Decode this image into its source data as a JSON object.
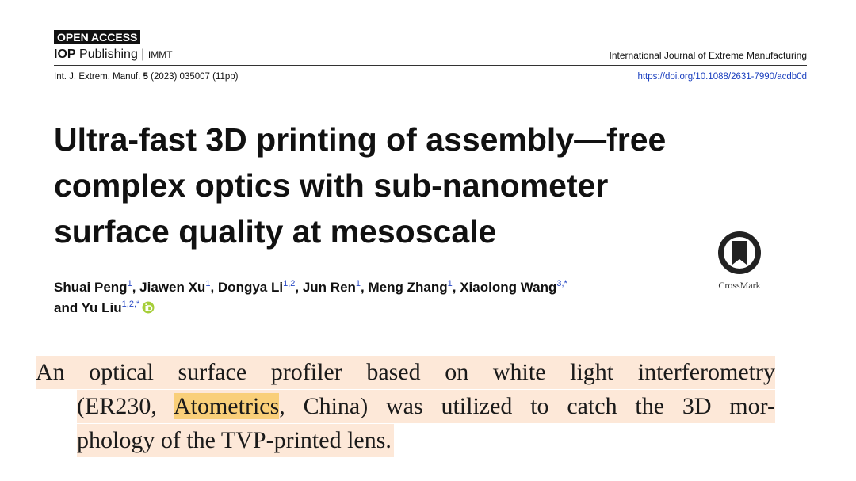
{
  "header": {
    "badge": "OPEN ACCESS",
    "publisher": "IOP",
    "publisher_rest": "Publishing",
    "separator": "|",
    "society": "IMMT",
    "journal": "International Journal of Extreme Manufacturing",
    "citation_prefix": "Int. J. Extrem. Manuf.",
    "volume": "5",
    "citation_suffix": "(2023) 035007 (11pp)",
    "doi": "https://doi.org/10.1088/2631-7990/acdb0d"
  },
  "title": {
    "lines": [
      "Ultra-fast 3D printing of assembly—free",
      "complex optics with sub-nanometer",
      "surface quality at mesoscale"
    ]
  },
  "crossmark": {
    "label": "CrossMark"
  },
  "authors": {
    "separator": ",",
    "conjunction": "and",
    "list": [
      {
        "name": "Shuai Peng",
        "sup": "1"
      },
      {
        "name": "Jiawen Xu",
        "sup": "1"
      },
      {
        "name": "Dongya Li",
        "sup": "1,2"
      },
      {
        "name": "Jun Ren",
        "sup": "1"
      },
      {
        "name": "Meng Zhang",
        "sup": "1"
      },
      {
        "name": "Xiaolong Wang",
        "sup": "3,*"
      },
      {
        "name": "Yu Liu",
        "sup": "1,2,*"
      }
    ]
  },
  "quote": {
    "line1": "An optical surface profiler based on white light interferometry",
    "line2_before": "(ER230, ",
    "highlight": "Atometrics",
    "line2_after": ", China) was utilized to catch the 3D mor-",
    "line3": "phology of the TVP-printed lens."
  }
}
